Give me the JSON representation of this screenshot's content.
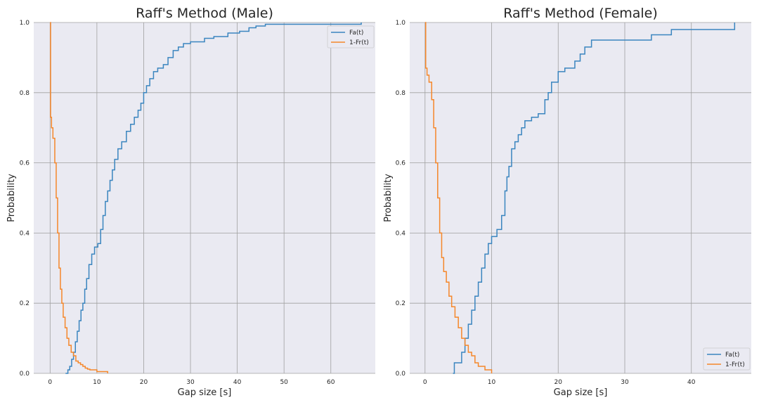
{
  "chart_data": [
    {
      "type": "line",
      "step": true,
      "title": "Raff's Method (Male)",
      "xlabel": "Gap size [s]",
      "ylabel": "Probability",
      "xlim": [
        -3.5,
        69.5
      ],
      "ylim": [
        0,
        1
      ],
      "xticks": [
        0,
        10,
        20,
        30,
        40,
        50,
        60
      ],
      "yticks": [
        0.0,
        0.2,
        0.4,
        0.6,
        0.8,
        1.0
      ],
      "grid": true,
      "legend_position": "top-right",
      "series": [
        {
          "name": "Fa(t)",
          "color": "#3a85bf",
          "x": [
            3.3,
            3.8,
            4.2,
            4.6,
            5.0,
            5.4,
            5.8,
            6.2,
            6.6,
            7.0,
            7.4,
            7.8,
            8.3,
            8.9,
            9.5,
            10.2,
            10.8,
            11.3,
            11.8,
            12.3,
            12.8,
            13.3,
            13.8,
            14.5,
            15.3,
            16.3,
            17.2,
            18.0,
            18.8,
            19.4,
            20.0,
            20.6,
            21.3,
            22.1,
            23.0,
            24.2,
            25.2,
            26.3,
            27.4,
            28.5,
            30.0,
            33.0,
            35.0,
            38.0,
            40.5,
            42.5,
            44.0,
            46.0,
            48.0,
            66.5
          ],
          "y": [
            0.0,
            0.01,
            0.02,
            0.04,
            0.06,
            0.09,
            0.12,
            0.15,
            0.18,
            0.2,
            0.24,
            0.27,
            0.31,
            0.34,
            0.36,
            0.37,
            0.41,
            0.45,
            0.49,
            0.52,
            0.55,
            0.58,
            0.61,
            0.64,
            0.66,
            0.69,
            0.71,
            0.73,
            0.75,
            0.77,
            0.8,
            0.82,
            0.84,
            0.86,
            0.87,
            0.88,
            0.9,
            0.92,
            0.93,
            0.94,
            0.945,
            0.955,
            0.96,
            0.97,
            0.975,
            0.985,
            0.99,
            0.995,
            0.995,
            1.0
          ]
        },
        {
          "name": "1-Fr(t)",
          "color": "#f5872a",
          "x": [
            0.0,
            0.1,
            0.3,
            0.6,
            1.0,
            1.3,
            1.6,
            1.9,
            2.2,
            2.5,
            2.8,
            3.2,
            3.6,
            4.0,
            4.5,
            5.0,
            5.5,
            6.0,
            6.5,
            7.0,
            7.5,
            8.0,
            8.5,
            9.0,
            10.0,
            11.0,
            12.3
          ],
          "y": [
            1.0,
            0.73,
            0.7,
            0.67,
            0.6,
            0.5,
            0.4,
            0.3,
            0.24,
            0.2,
            0.16,
            0.13,
            0.1,
            0.08,
            0.06,
            0.05,
            0.035,
            0.03,
            0.025,
            0.02,
            0.015,
            0.012,
            0.01,
            0.01,
            0.005,
            0.005,
            0.0
          ]
        }
      ]
    },
    {
      "type": "line",
      "step": true,
      "title": "Raff's Method (Female)",
      "xlabel": "Gap size [s]",
      "ylabel": "Probability",
      "xlim": [
        -2.3,
        49.0
      ],
      "ylim": [
        0,
        1
      ],
      "xticks": [
        0,
        10,
        20,
        30,
        40
      ],
      "yticks": [
        0.0,
        0.2,
        0.4,
        0.6,
        0.8,
        1.0
      ],
      "grid": true,
      "legend_position": "bottom-right",
      "series": [
        {
          "name": "Fa(t)",
          "color": "#3a85bf",
          "x": [
            4.2,
            4.4,
            5.5,
            6.0,
            6.5,
            7.0,
            7.5,
            8.0,
            8.5,
            9.0,
            9.5,
            10.0,
            10.8,
            11.5,
            12.0,
            12.3,
            12.6,
            13.0,
            13.5,
            14.0,
            14.5,
            15.0,
            16.0,
            17.0,
            18.0,
            18.5,
            19.0,
            20.0,
            21.0,
            22.5,
            23.3,
            24.0,
            25.0,
            27.0,
            34.0,
            37.0,
            46.5
          ],
          "y": [
            0.0,
            0.03,
            0.06,
            0.1,
            0.14,
            0.18,
            0.22,
            0.26,
            0.3,
            0.34,
            0.37,
            0.39,
            0.41,
            0.45,
            0.52,
            0.56,
            0.59,
            0.64,
            0.66,
            0.68,
            0.7,
            0.72,
            0.73,
            0.74,
            0.78,
            0.8,
            0.83,
            0.86,
            0.87,
            0.89,
            0.91,
            0.93,
            0.95,
            0.95,
            0.965,
            0.98,
            1.0
          ]
        },
        {
          "name": "1-Fr(t)",
          "color": "#f5872a",
          "x": [
            0.0,
            0.1,
            0.3,
            0.6,
            1.0,
            1.3,
            1.6,
            1.9,
            2.2,
            2.5,
            2.8,
            3.2,
            3.6,
            4.0,
            4.5,
            5.0,
            5.5,
            6.0,
            6.5,
            7.0,
            7.5,
            8.0,
            9.0,
            10.0
          ],
          "y": [
            1.0,
            0.87,
            0.85,
            0.83,
            0.78,
            0.7,
            0.6,
            0.5,
            0.4,
            0.33,
            0.29,
            0.26,
            0.22,
            0.19,
            0.16,
            0.13,
            0.1,
            0.08,
            0.06,
            0.05,
            0.03,
            0.02,
            0.01,
            0.0
          ]
        }
      ]
    }
  ]
}
